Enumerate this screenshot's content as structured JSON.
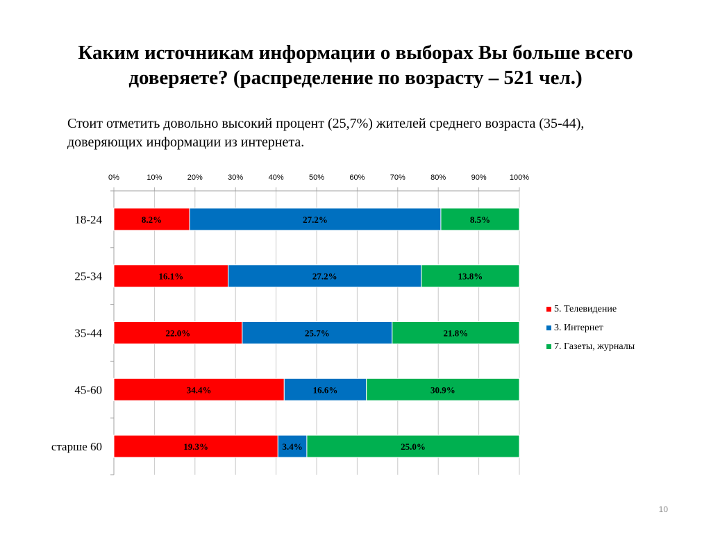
{
  "slide": {
    "title": "Каким источникам информации о выборах Вы больше всего доверяете? (распределение по возрасту – 521 чел.)",
    "subtitle": "Стоит отметить довольно высокий процент (25,7%) жителей среднего возраста (35-44), доверяющих информации из интернета.",
    "page_number": "10"
  },
  "chart_data": {
    "type": "bar",
    "orientation": "horizontal",
    "stacking": "percent",
    "categories": [
      "18-24",
      "25-34",
      "35-44",
      "45-60",
      "старше 60"
    ],
    "series": [
      {
        "name": "5. Телевидение",
        "color": "#ff0000",
        "values": [
          8.2,
          16.1,
          22.0,
          34.4,
          19.3
        ],
        "labels": [
          "8.2%",
          "16.1%",
          "22.0%",
          "34.4%",
          "19.3%"
        ]
      },
      {
        "name": "3. Интернет",
        "color": "#0070c0",
        "values": [
          27.2,
          27.2,
          25.7,
          16.6,
          3.4
        ],
        "labels": [
          "27.2%",
          "27.2%",
          "25.7%",
          "16.6%",
          "3.4%"
        ]
      },
      {
        "name": "7. Газеты, журналы",
        "color": "#00b050",
        "values": [
          8.5,
          13.8,
          21.8,
          30.9,
          25.0
        ],
        "labels": [
          "8.5%",
          "13.8%",
          "21.8%",
          "30.9%",
          "25.0%"
        ]
      }
    ],
    "x_ticks": [
      "0%",
      "10%",
      "20%",
      "30%",
      "40%",
      "50%",
      "60%",
      "70%",
      "80%",
      "90%",
      "100%"
    ],
    "xlim": [
      0,
      100
    ],
    "x_axis_position": "top",
    "grid": true,
    "legend_position": "right"
  }
}
